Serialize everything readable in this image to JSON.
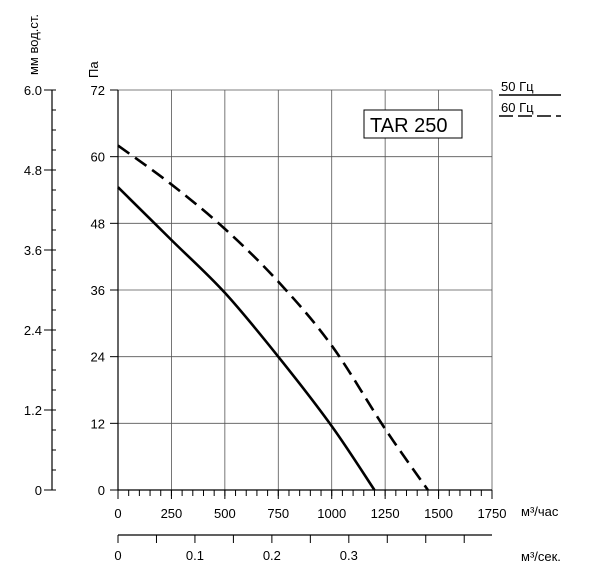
{
  "chart_data": {
    "type": "line",
    "title": "",
    "model_label": "TAR 250",
    "y_left_outer": {
      "label": "мм вод.ст.",
      "range": [
        0,
        6.0
      ],
      "ticks": [
        "0",
        "1.2",
        "2.4",
        "3.6",
        "4.8",
        "6.0"
      ],
      "minor_step": 0.3
    },
    "y_left_inner": {
      "label": "Па",
      "range": [
        0,
        72
      ],
      "ticks": [
        "0",
        "12",
        "24",
        "36",
        "48",
        "60",
        "72"
      ]
    },
    "x_main": {
      "label": "м³/час",
      "range": [
        0,
        1750
      ],
      "ticks": [
        "0",
        "250",
        "500",
        "750",
        "1000",
        "1250",
        "1500",
        "1750"
      ],
      "minor_step": 50
    },
    "x_secondary": {
      "label": "м³/сек.",
      "ticks": [
        {
          "value": 0,
          "label": "0"
        },
        {
          "value": 0.1,
          "label": "0.1"
        },
        {
          "value": 0.2,
          "label": "0.2"
        },
        {
          "value": 0.3,
          "label": "0.3"
        }
      ],
      "minor_step": 0.05
    },
    "grid": true,
    "legend": [
      {
        "name": "50 Гц",
        "style": "solid"
      },
      {
        "name": "60 Гц",
        "style": "dashed"
      }
    ],
    "series": [
      {
        "name": "50 Гц",
        "style": "solid",
        "points": [
          [
            0,
            54.5
          ],
          [
            250,
            45
          ],
          [
            500,
            35.5
          ],
          [
            750,
            24
          ],
          [
            1000,
            11.5
          ],
          [
            1200,
            0
          ]
        ]
      },
      {
        "name": "60 Гц",
        "style": "dashed",
        "points": [
          [
            0,
            62
          ],
          [
            250,
            55
          ],
          [
            500,
            47
          ],
          [
            750,
            37.5
          ],
          [
            1000,
            26
          ],
          [
            1250,
            11
          ],
          [
            1450,
            0
          ]
        ]
      }
    ]
  }
}
